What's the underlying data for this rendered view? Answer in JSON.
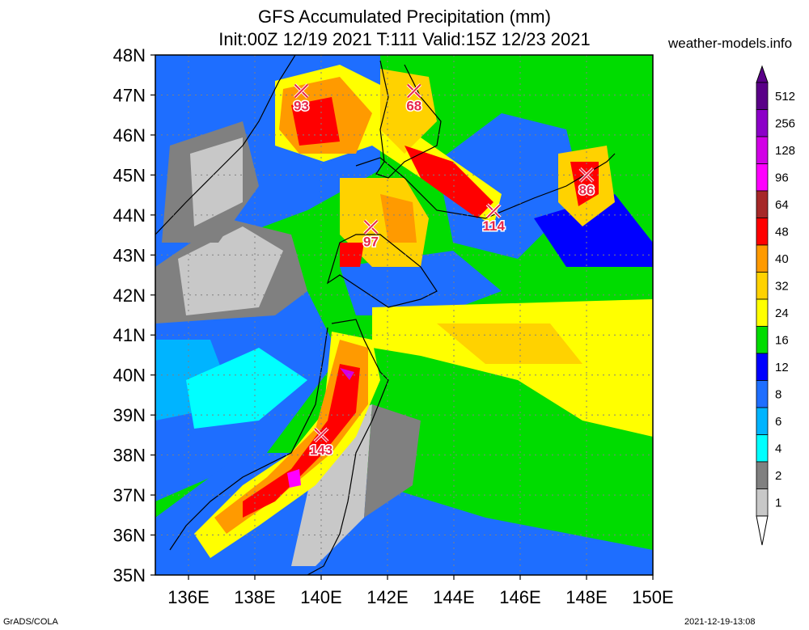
{
  "header": {
    "title_line1": "GFS Accumulated Precipitation (mm)",
    "title_line2": "Init:00Z 12/19 2021 T:111 Valid:15Z 12/23 2021",
    "site": "weather-models.info"
  },
  "footer": {
    "left": "GrADS/COLA",
    "right": "2021-12-19-13:08"
  },
  "map": {
    "lat_labels": [
      "48N",
      "47N",
      "46N",
      "45N",
      "44N",
      "43N",
      "42N",
      "41N",
      "40N",
      "39N",
      "38N",
      "37N",
      "36N",
      "35N"
    ],
    "lon_labels": [
      "136E",
      "138E",
      "140E",
      "142E",
      "144E",
      "146E",
      "148E",
      "150E"
    ],
    "lon_range": [
      135,
      150
    ],
    "lat_range": [
      35,
      48
    ],
    "grid": "dotted",
    "markers": [
      {
        "label": "93",
        "lon": 139.4,
        "lat": 47.1
      },
      {
        "label": "68",
        "lon": 142.8,
        "lat": 47.1
      },
      {
        "label": "86",
        "lon": 148.0,
        "lat": 45.0
      },
      {
        "label": "114",
        "lon": 145.2,
        "lat": 44.1
      },
      {
        "label": "97",
        "lon": 141.5,
        "lat": 43.7
      },
      {
        "label": "143",
        "lon": 140.0,
        "lat": 38.5
      }
    ]
  },
  "legend": {
    "levels": [
      {
        "label": "512",
        "color": "#5a0088"
      },
      {
        "label": "256",
        "color": "#8c00c8"
      },
      {
        "label": "128",
        "color": "#d200e6"
      },
      {
        "label": "96",
        "color": "#ff00ff"
      },
      {
        "label": "64",
        "color": "#a62828"
      },
      {
        "label": "48",
        "color": "#ff0000"
      },
      {
        "label": "40",
        "color": "#ff9a00"
      },
      {
        "label": "32",
        "color": "#ffd200"
      },
      {
        "label": "24",
        "color": "#ffff00"
      },
      {
        "label": "16",
        "color": "#00dc00"
      },
      {
        "label": "12",
        "color": "#0000ff"
      },
      {
        "label": "8",
        "color": "#1e6eff"
      },
      {
        "label": "6",
        "color": "#00b4ff"
      },
      {
        "label": "4",
        "color": "#00ffff"
      },
      {
        "label": "2",
        "color": "#808080"
      },
      {
        "label": "1",
        "color": "#c8c8c8"
      }
    ]
  }
}
